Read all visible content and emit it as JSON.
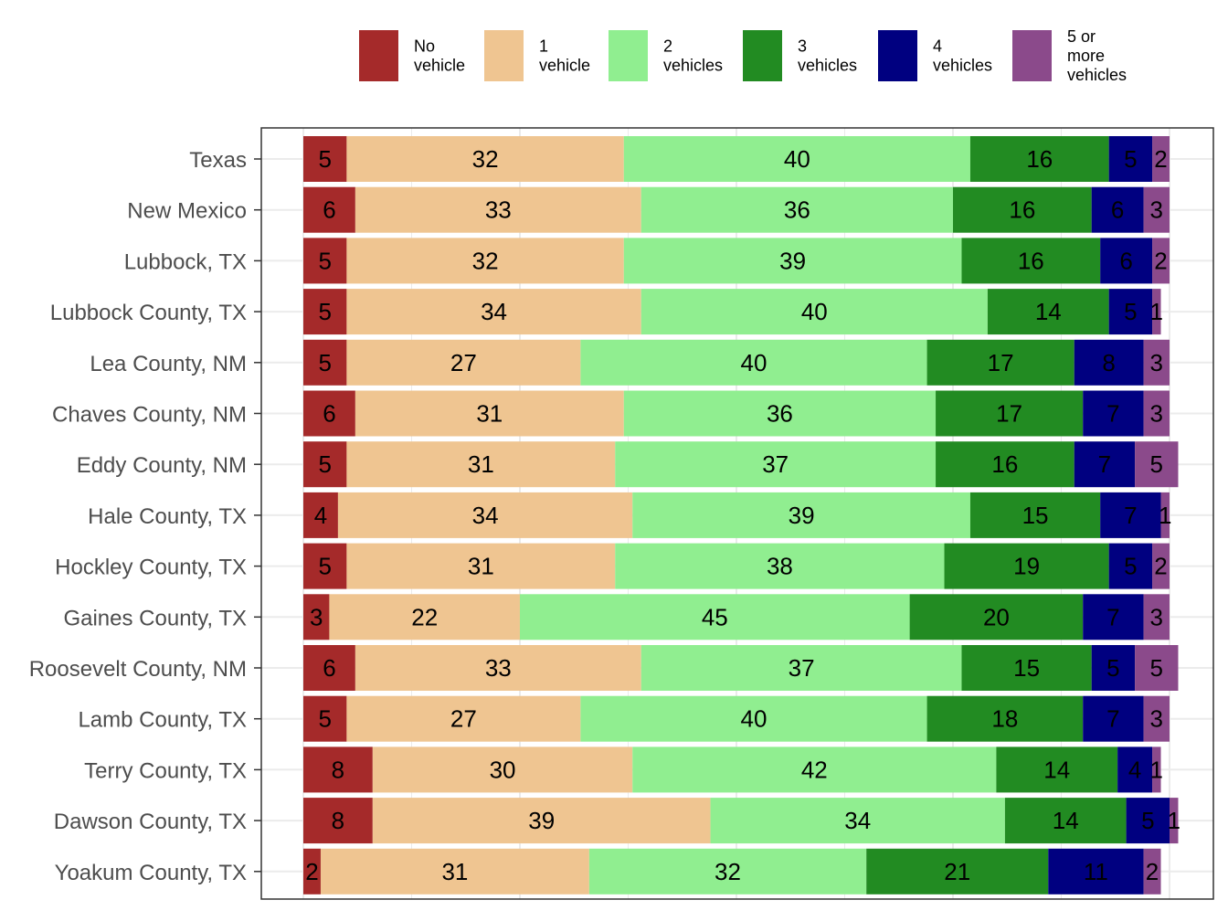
{
  "chart_data": {
    "type": "bar",
    "orientation": "horizontal",
    "stacked": true,
    "normalized_percent": true,
    "title": "",
    "xlabel": "",
    "ylabel": "",
    "xlim": [
      0,
      100
    ],
    "grid": true,
    "legend_position": "top",
    "categories": [
      "Texas",
      "New Mexico",
      "Lubbock, TX",
      "Lubbock County, TX",
      "Lea County, NM",
      "Chaves County, NM",
      "Eddy County, NM",
      "Hale County, TX",
      "Hockley County, TX",
      "Gaines County, TX",
      "Roosevelt County, NM",
      "Lamb County, TX",
      "Terry County, TX",
      "Dawson County, TX",
      "Yoakum County, TX"
    ],
    "series": [
      {
        "name": "No vehicle",
        "legend_lines": [
          "No",
          "vehicle"
        ],
        "color": "#A52A2A",
        "values": [
          5,
          6,
          5,
          5,
          5,
          6,
          5,
          4,
          5,
          3,
          6,
          5,
          8,
          8,
          2
        ]
      },
      {
        "name": "1 vehicle",
        "legend_lines": [
          "1",
          "vehicle"
        ],
        "color": "#EFC591",
        "values": [
          32,
          33,
          32,
          34,
          27,
          31,
          31,
          34,
          31,
          22,
          33,
          27,
          30,
          39,
          31
        ]
      },
      {
        "name": "2 vehicles",
        "legend_lines": [
          "2",
          "vehicles"
        ],
        "color": "#90EE90",
        "values": [
          40,
          36,
          39,
          40,
          40,
          36,
          37,
          39,
          38,
          45,
          37,
          40,
          42,
          34,
          32
        ]
      },
      {
        "name": "3 vehicles",
        "legend_lines": [
          "3",
          "vehicles"
        ],
        "color": "#228B22",
        "values": [
          16,
          16,
          16,
          14,
          17,
          17,
          16,
          15,
          19,
          20,
          15,
          18,
          14,
          14,
          21
        ]
      },
      {
        "name": "4 vehicles",
        "legend_lines": [
          "4",
          "vehicles"
        ],
        "color": "#000080",
        "values": [
          5,
          6,
          6,
          5,
          8,
          7,
          7,
          7,
          5,
          7,
          5,
          7,
          4,
          5,
          11
        ]
      },
      {
        "name": "5 or more vehicles",
        "legend_lines": [
          "5 or",
          "more",
          "vehicles"
        ],
        "color": "#8B4A8B",
        "values": [
          2,
          3,
          2,
          1,
          3,
          3,
          5,
          1,
          2,
          3,
          5,
          3,
          1,
          1,
          2
        ]
      }
    ]
  }
}
